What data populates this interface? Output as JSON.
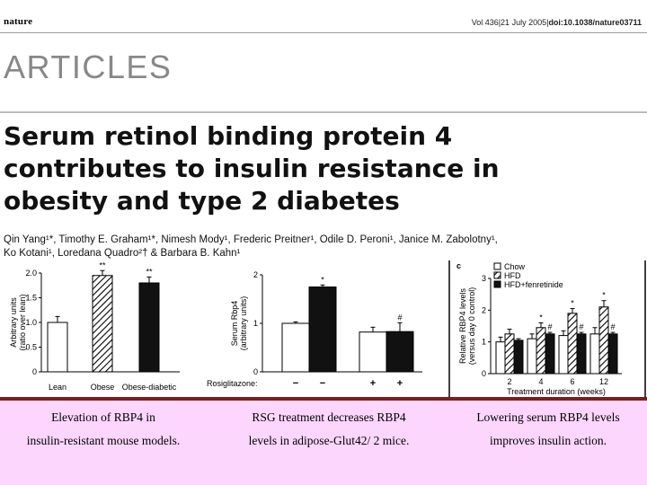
{
  "masthead": {
    "journal": "nature",
    "citation_prefix": "Vol 436|21 July 2005|",
    "citation_doi": "doi:10.1038/nature03711"
  },
  "section": "ARTICLES",
  "title_lines": [
    "Serum retinol binding protein 4",
    "contributes to insulin resistance in",
    "obesity and type 2 diabetes"
  ],
  "authors_lines": [
    "Qin Yang¹*, Timothy E. Graham¹*, Nimesh Mody¹, Frederic Preitner¹, Odile D. Peroni¹, Janice M. Zabolotny¹,",
    "Ko Kotani¹, Loredana Quadro²† & Barbara B. Kahn¹"
  ],
  "captions": {
    "left": [
      "Elevation of RBP4 in",
      "insulin-resistant mouse models."
    ],
    "middle": [
      "RSG treatment decreases RBP4",
      "levels in adipose-Glut42/ 2 mice."
    ],
    "right": [
      "Lowering serum RBP4 levels",
      "improves insulin action."
    ]
  },
  "colors": {
    "divider": "#7a1f1f",
    "caption_bg": "#fdd6fd",
    "section_gray": "#888888"
  },
  "chart_data": [
    {
      "type": "bar",
      "ylabel_lines": [
        "Arbitrary units",
        "(ratio over lean)"
      ],
      "ylim": [
        0,
        2.0
      ],
      "yticks": [
        "0",
        "0.5",
        "1.0",
        "1.5",
        "2.0"
      ],
      "ytick_values": [
        0,
        0.5,
        1.0,
        1.5,
        2.0
      ],
      "categories": [
        "Lean",
        "Obese",
        "Obese-diabetic"
      ],
      "values": [
        1.0,
        1.95,
        1.8
      ],
      "errors": [
        0.12,
        0.1,
        0.12
      ],
      "fills": [
        "white",
        "hatch",
        "black"
      ],
      "annotations": [
        "",
        "**",
        "**"
      ]
    },
    {
      "type": "bar",
      "ylabel_lines": [
        "Serum Rbp4",
        "(arbitrary units)"
      ],
      "ylim": [
        0,
        2
      ],
      "yticks": [
        "0",
        "1",
        "2"
      ],
      "ytick_values": [
        0,
        1,
        2
      ],
      "treatment_label": "Rosiglitazone:",
      "treatment_marks": [
        "−",
        "−",
        "+",
        "+"
      ],
      "values": [
        1.0,
        1.75,
        0.82,
        0.83
      ],
      "errors": [
        0.03,
        0.04,
        0.1,
        0.18
      ],
      "fills": [
        "white",
        "black",
        "white",
        "black"
      ],
      "annotations": [
        "",
        "*",
        "",
        "#"
      ]
    },
    {
      "type": "bar",
      "panel_letter": "c",
      "ylabel_lines": [
        "Relative RBP4 levels",
        "(versus day 0 control)"
      ],
      "xlabel": "Treatment duration (weeks)",
      "ylim": [
        0,
        3
      ],
      "yticks": [
        "0",
        "1",
        "2",
        "3"
      ],
      "ytick_values": [
        0,
        1,
        2,
        3
      ],
      "categories": [
        "2",
        "4",
        "6",
        "12"
      ],
      "series": [
        {
          "name": "Chow",
          "fill": "white",
          "values": [
            1.0,
            1.1,
            1.2,
            1.25
          ],
          "errors": [
            0.15,
            0.15,
            0.15,
            0.2
          ],
          "annotations": [
            "",
            "",
            "",
            ""
          ]
        },
        {
          "name": "HFD",
          "fill": "hatch",
          "values": [
            1.25,
            1.45,
            1.9,
            2.1
          ],
          "errors": [
            0.15,
            0.15,
            0.15,
            0.2
          ],
          "annotations": [
            "",
            "*",
            "*",
            "*"
          ]
        },
        {
          "name": "HFD+fenretinide",
          "fill": "black",
          "values": [
            1.05,
            1.25,
            1.25,
            1.25
          ],
          "errors": [
            0.05,
            0.05,
            0.05,
            0.05
          ],
          "annotations": [
            "",
            "#",
            "#",
            "#"
          ]
        }
      ]
    }
  ]
}
